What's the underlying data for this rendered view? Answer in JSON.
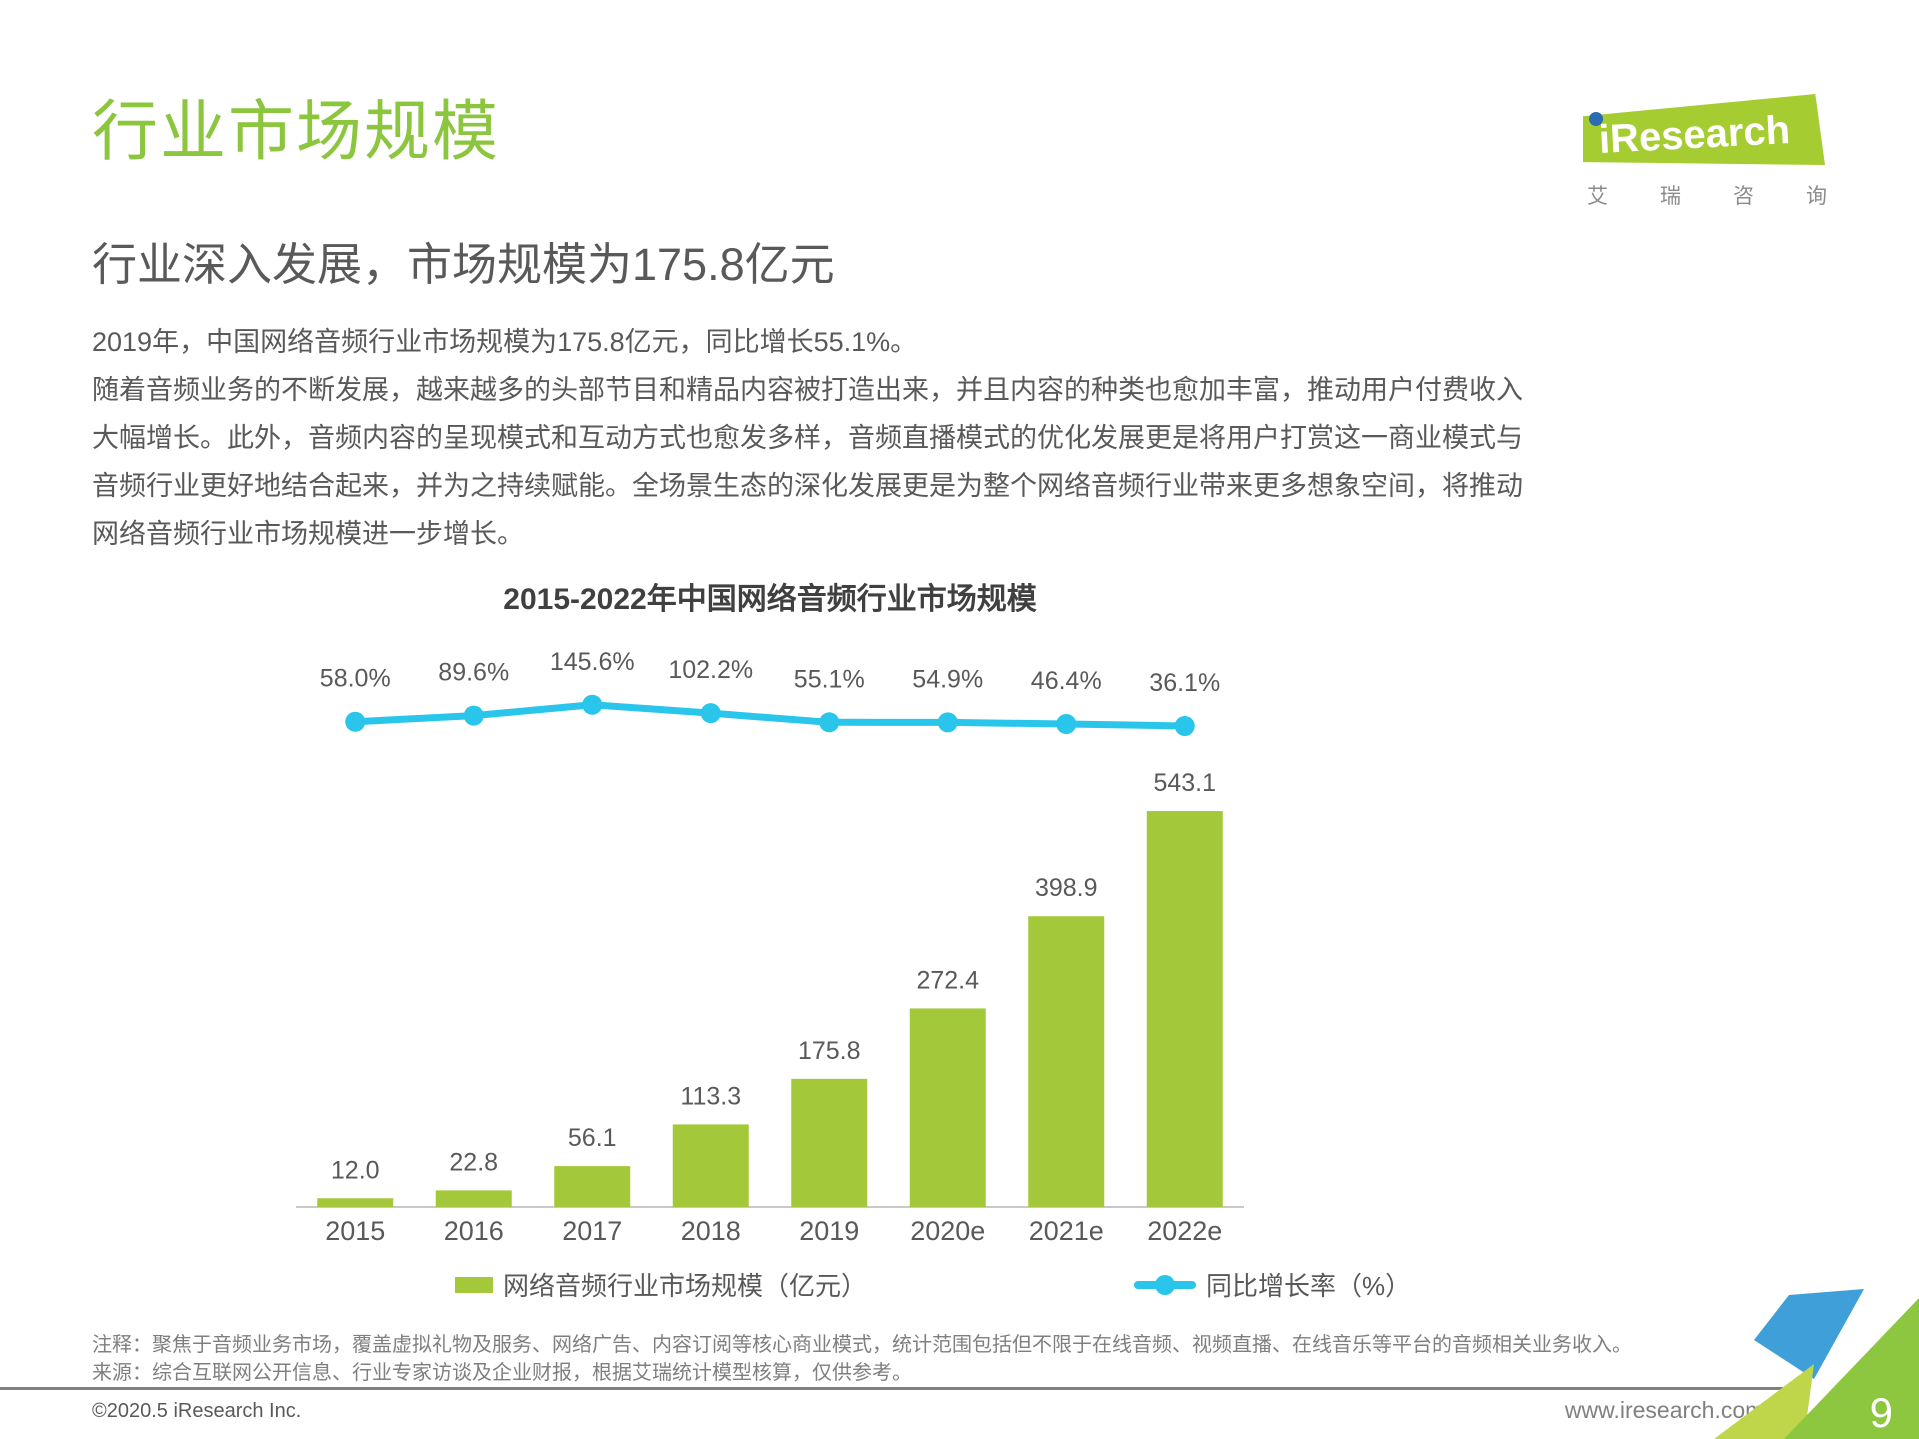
{
  "header": {
    "title": "行业市场规模",
    "subtitle": "行业深入发展，市场规模为175.8亿元",
    "logo": {
      "brand": "iResearch",
      "brand_cn": "艾瑞咨询"
    }
  },
  "body": {
    "lines": [
      "2019年，中国网络音频行业市场规模为175.8亿元，同比增长55.1%。",
      "随着音频业务的不断发展，越来越多的头部节目和精品内容被打造出来，并且内容的种类也愈加丰富，推动用户付费收入",
      "大幅增长。此外，音频内容的呈现模式和互动方式也愈发多样，音频直播模式的优化发展更是将用户打赏这一商业模式与",
      "音频行业更好地结合起来，并为之持续赋能。全场景生态的深化发展更是为整个网络音频行业带来更多想象空间，将推动",
      "网络音频行业市场规模进一步增长。"
    ]
  },
  "chart_data": {
    "type": "bar",
    "title": "2015-2022年中国网络音频行业市场规模",
    "categories": [
      "2015",
      "2016",
      "2017",
      "2018",
      "2019",
      "2020e",
      "2021e",
      "2022e"
    ],
    "series": [
      {
        "name": "网络音频行业市场规模（亿元）",
        "type": "bar",
        "values": [
          12.0,
          22.8,
          56.1,
          113.3,
          175.8,
          272.4,
          398.9,
          543.1
        ],
        "color": "#A3C93A"
      },
      {
        "name": "同比增长率（%）",
        "type": "line",
        "values": [
          58.0,
          89.6,
          145.6,
          102.2,
          55.1,
          54.9,
          46.4,
          36.1
        ],
        "color": "#29C5EB"
      }
    ],
    "xlabel": "",
    "ylabel": "",
    "grid": false,
    "legend_position": "bottom",
    "value_labels_shown": true
  },
  "legend": {
    "bar_label": "网络音频行业市场规模（亿元）",
    "line_label": "同比增长率（%）"
  },
  "notes": {
    "note": "注释：聚焦于音频业务市场，覆盖虚拟礼物及服务、网络广告、内容订阅等核心商业模式，统计范围包括但不限于在线音频、视频直播、在线音乐等平台的音频相关业务收入。",
    "source": "来源：综合互联网公开信息、行业专家访谈及企业财报，根据艾瑞统计模型核算，仅供参考。"
  },
  "footer": {
    "copyright": "©2020.5 iResearch Inc.",
    "website": "www.iresearch.com.cn",
    "page_number": "9"
  },
  "colors": {
    "title_green": "#8CC63F",
    "bar_green": "#A3C93A",
    "line_cyan": "#29C5EB",
    "text_dark": "#595959",
    "text_light": "#7F7F7F",
    "logo_green": "#A5CD32",
    "logo_blue": "#2B6BB2"
  }
}
